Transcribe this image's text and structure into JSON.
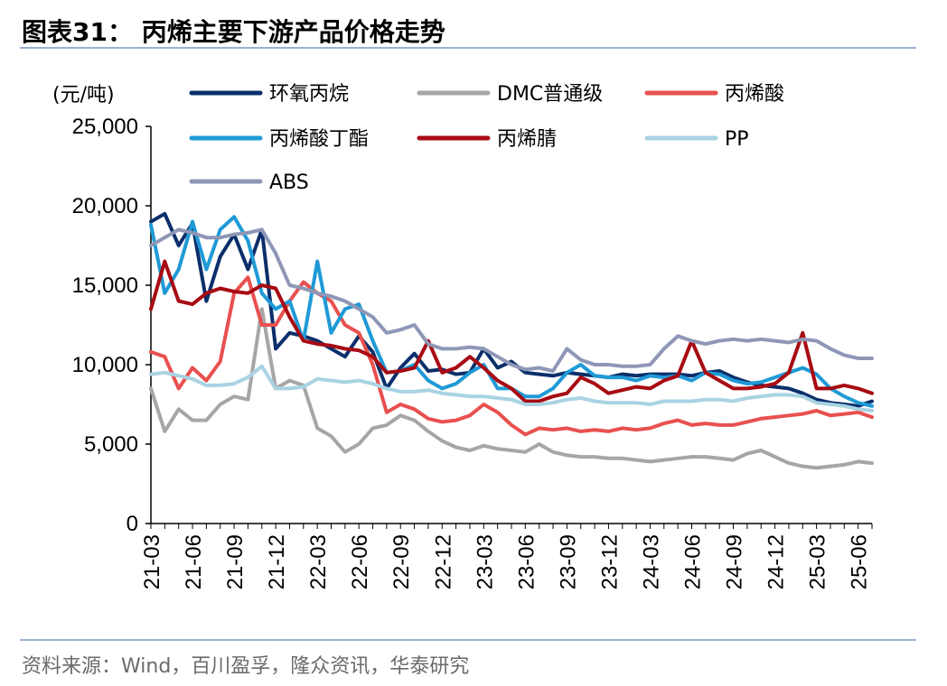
{
  "header": {
    "title": "图表31：   丙烯主要下游产品价格走势"
  },
  "footer": {
    "source": "资料来源：Wind，百川盈孚，隆众资讯，华泰研究"
  },
  "colors": {
    "rule": "#9bb3d4",
    "axis": "#000000"
  },
  "chart_data": {
    "type": "line",
    "title": "",
    "ylabel": "(元/吨)",
    "xlabel": "",
    "ylim": [
      0,
      25000
    ],
    "yticks": [
      0,
      5000,
      10000,
      15000,
      20000,
      25000
    ],
    "ytick_labels": [
      "0",
      "5,000",
      "10,000",
      "15,000",
      "20,000",
      "25,000"
    ],
    "x_range": [
      "2021-03",
      "2025-07"
    ],
    "xtick_labels": [
      "21-03",
      "21-06",
      "21-09",
      "21-12",
      "22-03",
      "22-06",
      "22-09",
      "22-12",
      "23-03",
      "23-06",
      "23-09",
      "23-12",
      "24-03",
      "24-06",
      "24-09",
      "24-12",
      "25-03",
      "25-06"
    ],
    "grid": false,
    "legend": "top",
    "x": [
      "21-03",
      "21-04",
      "21-05",
      "21-06",
      "21-07",
      "21-08",
      "21-09",
      "21-10",
      "21-11",
      "21-12",
      "22-01",
      "22-02",
      "22-03",
      "22-04",
      "22-05",
      "22-06",
      "22-07",
      "22-08",
      "22-09",
      "22-10",
      "22-11",
      "22-12",
      "23-01",
      "23-02",
      "23-03",
      "23-04",
      "23-05",
      "23-06",
      "23-07",
      "23-08",
      "23-09",
      "23-10",
      "23-11",
      "23-12",
      "24-01",
      "24-02",
      "24-03",
      "24-04",
      "24-05",
      "24-06",
      "24-07",
      "24-08",
      "24-09",
      "24-10",
      "24-11",
      "24-12",
      "25-01",
      "25-02",
      "25-03",
      "25-04",
      "25-05",
      "25-06",
      "25-07"
    ],
    "series": [
      {
        "name": "环氧丙烷",
        "color": "#0b2f6b",
        "values": [
          19000,
          19500,
          17500,
          18900,
          14000,
          16800,
          18200,
          16000,
          18500,
          11000,
          12000,
          11800,
          11500,
          11000,
          10500,
          11800,
          10800,
          8500,
          9800,
          10700,
          9600,
          9700,
          9400,
          9500,
          11000,
          9800,
          10200,
          9500,
          9400,
          9300,
          9500,
          9400,
          9300,
          9200,
          9400,
          9300,
          9400,
          9400,
          9400,
          9300,
          9500,
          9600,
          9200,
          8900,
          8700,
          8600,
          8500,
          8200,
          7800,
          7600,
          7500,
          7400,
          7700
        ]
      },
      {
        "name": "DMC普通级",
        "color": "#a6a6a6",
        "values": [
          8500,
          5800,
          7200,
          6500,
          6500,
          7500,
          8000,
          7800,
          13500,
          8500,
          9000,
          8700,
          6000,
          5500,
          4500,
          5000,
          6000,
          6200,
          6800,
          6500,
          5800,
          5200,
          4800,
          4600,
          4900,
          4700,
          4600,
          4500,
          5000,
          4500,
          4300,
          4200,
          4200,
          4100,
          4100,
          4000,
          3900,
          4000,
          4100,
          4200,
          4200,
          4100,
          4000,
          4400,
          4600,
          4200,
          3800,
          3600,
          3500,
          3600,
          3700,
          3900,
          3800
        ]
      },
      {
        "name": "丙烯酸",
        "color": "#e8504f",
        "values": [
          10800,
          10500,
          8500,
          9800,
          9000,
          10200,
          14500,
          15500,
          12500,
          12500,
          14000,
          15200,
          14500,
          14000,
          12500,
          12000,
          10000,
          7000,
          7500,
          7200,
          6600,
          6400,
          6500,
          6800,
          7500,
          7000,
          6200,
          5600,
          6000,
          5900,
          6000,
          5800,
          5900,
          5800,
          6000,
          5900,
          6000,
          6300,
          6500,
          6200,
          6300,
          6200,
          6200,
          6400,
          6600,
          6700,
          6800,
          6900,
          7100,
          6800,
          6900,
          7000,
          6700
        ]
      },
      {
        "name": "丙烯酸丁酯",
        "color": "#1f9ad6",
        "values": [
          18800,
          14500,
          16000,
          19000,
          16000,
          18500,
          19300,
          17800,
          14500,
          13500,
          14000,
          11500,
          16500,
          12000,
          13500,
          13800,
          11500,
          9500,
          9600,
          10000,
          9000,
          8500,
          8800,
          9500,
          10000,
          8500,
          8500,
          8000,
          8000,
          8500,
          9500,
          10000,
          9300,
          9200,
          9200,
          9000,
          9300,
          9200,
          9300,
          9000,
          9500,
          9400,
          9000,
          8800,
          8900,
          9200,
          9500,
          9800,
          9400,
          8500,
          8000,
          7600,
          7400
        ]
      },
      {
        "name": "丙烯腈",
        "color": "#a80b12",
        "values": [
          13500,
          16500,
          14000,
          13800,
          14500,
          14800,
          14600,
          14500,
          15000,
          14800,
          13000,
          11500,
          11300,
          11200,
          11000,
          10900,
          10500,
          9500,
          9600,
          9800,
          11500,
          9500,
          9800,
          10500,
          9800,
          9000,
          8500,
          7700,
          7700,
          8000,
          8200,
          9200,
          8800,
          8200,
          8400,
          8600,
          8500,
          9000,
          9300,
          11500,
          9500,
          9000,
          8500,
          8500,
          8600,
          8800,
          9500,
          12000,
          8500,
          8500,
          8700,
          8500,
          8200
        ]
      },
      {
        "name": "PP",
        "color": "#a9d3e2",
        "values": [
          9400,
          9500,
          9300,
          9100,
          8700,
          8700,
          8800,
          9200,
          9900,
          8500,
          8500,
          8600,
          9100,
          9000,
          8900,
          9000,
          8800,
          8500,
          8300,
          8300,
          8400,
          8200,
          8100,
          8000,
          8000,
          7900,
          7800,
          7500,
          7500,
          7600,
          7800,
          7900,
          7700,
          7600,
          7600,
          7600,
          7500,
          7700,
          7700,
          7700,
          7800,
          7800,
          7700,
          7900,
          8000,
          8100,
          8100,
          8000,
          7600,
          7500,
          7400,
          7200,
          7100
        ]
      },
      {
        "name": "ABS",
        "color": "#8e97b6",
        "values": [
          17500,
          18000,
          18500,
          18300,
          18000,
          18000,
          18200,
          18300,
          18500,
          17000,
          15000,
          14800,
          14500,
          14300,
          14000,
          13500,
          13000,
          12000,
          12200,
          12500,
          11300,
          11000,
          11000,
          11100,
          11000,
          10500,
          10000,
          9700,
          9800,
          9600,
          11000,
          10300,
          10000,
          10000,
          9900,
          9900,
          10000,
          11000,
          11800,
          11500,
          11300,
          11500,
          11600,
          11500,
          11600,
          11500,
          11400,
          11600,
          11500,
          11000,
          10600,
          10400,
          10400
        ]
      }
    ]
  }
}
